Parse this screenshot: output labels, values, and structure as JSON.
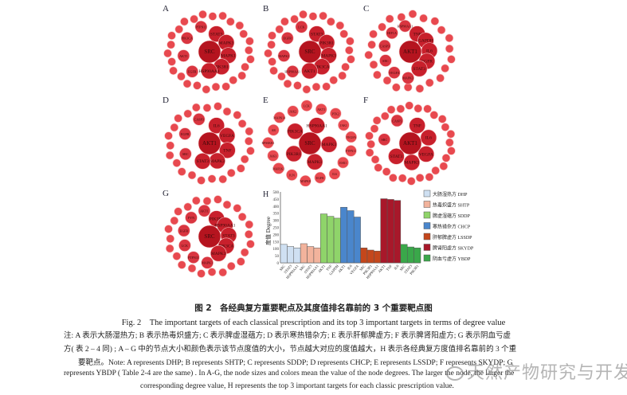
{
  "networks": [
    {
      "letter": "A",
      "center": "SRC",
      "hubs": [
        "STAT3",
        "MAPK3",
        "MAPK1",
        "PIK3R1",
        "HSP90AA1",
        "EGFR",
        "AKT1",
        "PIK3CA",
        "PTPN11"
      ],
      "outer_count": 26
    },
    {
      "letter": "B",
      "center": "SRC",
      "hubs": [
        "STAT3",
        "PIK3R1",
        "MAPK3",
        "PIK3CA",
        "AKT1",
        "HSP90AA1",
        "MAPK1",
        "EGFR",
        "LCK"
      ],
      "outer_count": 26
    },
    {
      "letter": "C",
      "center": "AKT1",
      "hubs": [
        "TNF",
        "GAPDH",
        "IL6",
        "EGFR",
        "STAT3",
        "MAPK3",
        "VEGFA",
        "SRC",
        "CASP3",
        "HIF1A",
        "HSP90AA1"
      ],
      "outer_count": 22
    },
    {
      "letter": "D",
      "center": "AKT1",
      "hubs": [
        "IL6",
        "VEGFA",
        "TNF",
        "MAPK3",
        "STAT3",
        "SRC",
        "EGFR",
        "CASP3"
      ],
      "outer_count": 24
    },
    {
      "letter": "E",
      "center": "SRC",
      "hubs": [
        "HSP90AA1",
        "MAPK3",
        "MAPK1",
        "PIK3R1",
        "PIK3CA"
      ],
      "outer": [
        "PTPN11",
        "ESR1",
        "IL6",
        "EGFR",
        "MAPK8",
        "JUN",
        "MAP2K1",
        "JAK3",
        "RPS6KB1",
        "AR",
        "MAPK14",
        "JAK2",
        "LCK",
        "AKT1",
        "PTK2",
        "JAK1",
        "VEGFA"
      ]
    },
    {
      "letter": "F",
      "center": "AKT1",
      "hubs": [
        "TNF",
        "IL6",
        "VEGFA",
        "MAPK3",
        "STAT3",
        "SRC",
        "CASP3"
      ],
      "outer_count": 28
    },
    {
      "letter": "G",
      "center": "SRC",
      "hubs": [
        "PIK3R1",
        "HSP90AA1",
        "STAT3",
        "PIK3CA",
        "MAPK3",
        "MAPK1",
        "PTPN11",
        "LCK",
        "EGFR",
        "FYN",
        "AKT1"
      ],
      "outer_count": 24
    }
  ],
  "chart_data": {
    "type": "bar",
    "panel_letter": "H",
    "ylabel": "度值 Degree",
    "ylim": [
      0,
      500
    ],
    "yticks": [
      0,
      50,
      100,
      150,
      200,
      250,
      300,
      350,
      400,
      450,
      500
    ],
    "series": [
      {
        "name": "大肠湿热方 DHP",
        "color": "#cfe0f2",
        "categories": [
          "SRC",
          "STAT3",
          "HSP90AA1"
        ],
        "values": [
          130,
          115,
          105
        ]
      },
      {
        "name": "热毒炽盛方 SHTP",
        "color": "#f2b39c",
        "categories": [
          "SRC",
          "STAT3",
          "HSP90AA1"
        ],
        "values": [
          135,
          115,
          105
        ]
      },
      {
        "name": "脾虚湿蕴方 SDDP",
        "color": "#8fd46a",
        "categories": [
          "AKT1",
          "TNF",
          "GAPDH"
        ],
        "values": [
          345,
          328,
          315
        ]
      },
      {
        "name": "寒热错杂方 CHCP",
        "color": "#4a86cc",
        "categories": [
          "AKT1",
          "IL6",
          "VEGFA"
        ],
        "values": [
          392,
          368,
          323
        ]
      },
      {
        "name": "肝郁脾虚方 LSSDP",
        "color": "#c4471c",
        "categories": [
          "SRC",
          "PIK3R1",
          "HSP90AA1"
        ],
        "values": [
          105,
          90,
          83
        ]
      },
      {
        "name": "脾肾阳虚方 SKYDP",
        "color": "#a8182a",
        "categories": [
          "AKT1",
          "TNF",
          "IL6"
        ],
        "values": [
          452,
          447,
          440
        ]
      },
      {
        "name": "阴血亏虚方 YBDP",
        "color": "#3aa84a",
        "categories": [
          "SRC",
          "STAT3",
          "PIK3R1"
        ],
        "values": [
          130,
          112,
          105
        ]
      }
    ]
  },
  "caption": {
    "title_cn": "图 2　各经典复方重要靶点及其度值排名靠前的 3 个重要靶点图",
    "title_en": "Fig. 2　The important targets of each classical prescription and its top 3 important targets in terms of degree value",
    "note_lines": [
      "注: A 表示大肠湿热方; B 表示热毒炽盛方; C 表示脾虚湿蕴方; D 表示寒热错杂方; E 表示肝郁脾虚方; F 表示脾肾阳虚方; G 表示阴血亏虚",
      "方( 表 2 – 4 同) ; A – G 中的节点大小和颜色表示该节点度值的大小，节点越大对应的度值越大，H 表示各经典复方度值排名靠前的 3 个重",
      "要靶点。Note: A represents DHP; B represents SHTP; C represents SDDP; D represents CHCP; E represents LSSDP; F represents SKYDP; G",
      "represents YBDP ( Table 2-4 are the same) . In A-G, the node sizes and colors mean the value of the node degrees. The larger the node, the larger the",
      "corresponding degree value, H represents the top 3 important targets for each classic prescription value."
    ]
  },
  "watermark": "天然产物研究与开发"
}
